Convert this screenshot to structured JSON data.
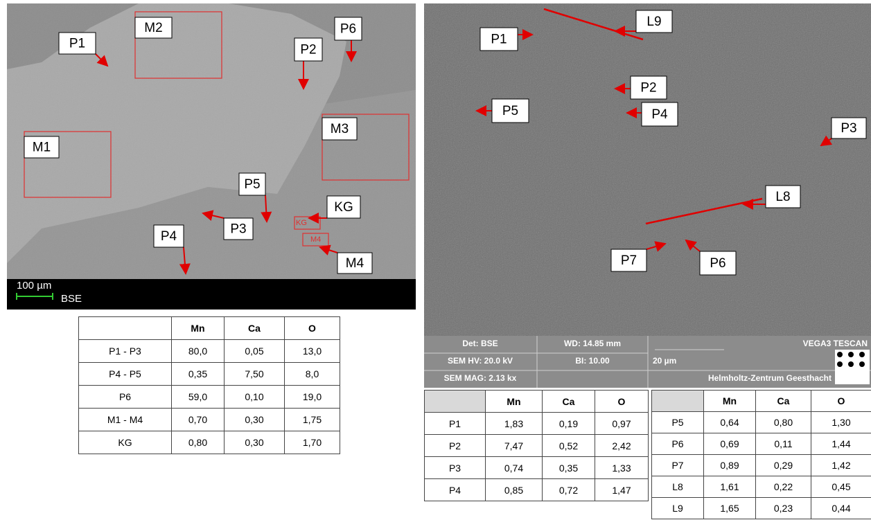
{
  "left_image": {
    "labels": [
      "P1",
      "M2",
      "P2",
      "P6",
      "M1",
      "M3",
      "P5",
      "KG",
      "P3",
      "P4",
      "M4"
    ],
    "region_labels": [
      "KG",
      "M4"
    ],
    "scale_bar": "100 µm",
    "detector": "BSE"
  },
  "left_table": {
    "columns": [
      "Mn",
      "Ca",
      "O"
    ],
    "rows": [
      [
        "P1 - P3",
        "80,0",
        "0,05",
        "13,0"
      ],
      [
        "P4 - P5",
        "0,35",
        "7,50",
        "8,0"
      ],
      [
        "P6",
        "59,0",
        "0,10",
        "19,0"
      ],
      [
        "M1 - M4",
        "0,70",
        "0,30",
        "1,75"
      ],
      [
        "KG",
        "0,80",
        "0,30",
        "1,70"
      ]
    ]
  },
  "right_image": {
    "labels": [
      "P1",
      "L9",
      "P2",
      "P5",
      "P4",
      "P3",
      "L8",
      "P7",
      "P6"
    ],
    "info": {
      "detector": "Det: BSE",
      "wd": "WD: 14.85 mm",
      "brand": "VEGA3 TESCAN",
      "hv": "SEM HV: 20.0 kV",
      "bi": "BI: 10.00",
      "scale": "20 µm",
      "mag": "SEM MAG: 2.13 kx",
      "institute": "Helmholtz-Zentrum Geesthacht"
    }
  },
  "right_tables": [
    {
      "columns": [
        "Mn",
        "Ca",
        "O"
      ],
      "rows": [
        [
          "P1",
          "1,83",
          "0,19",
          "0,97"
        ],
        [
          "P2",
          "7,47",
          "0,52",
          "2,42"
        ],
        [
          "P3",
          "0,74",
          "0,35",
          "1,33"
        ],
        [
          "P4",
          "0,85",
          "0,72",
          "1,47"
        ]
      ]
    },
    {
      "columns": [
        "Mn",
        "Ca",
        "O"
      ],
      "rows": [
        [
          "P5",
          "0,64",
          "0,80",
          "1,30"
        ],
        [
          "P6",
          "0,69",
          "0,11",
          "1,44"
        ],
        [
          "P7",
          "0,89",
          "0,29",
          "1,42"
        ],
        [
          "L8",
          "1,61",
          "0,22",
          "0,45"
        ],
        [
          "L9",
          "1,65",
          "0,23",
          "0,44"
        ]
      ]
    }
  ]
}
